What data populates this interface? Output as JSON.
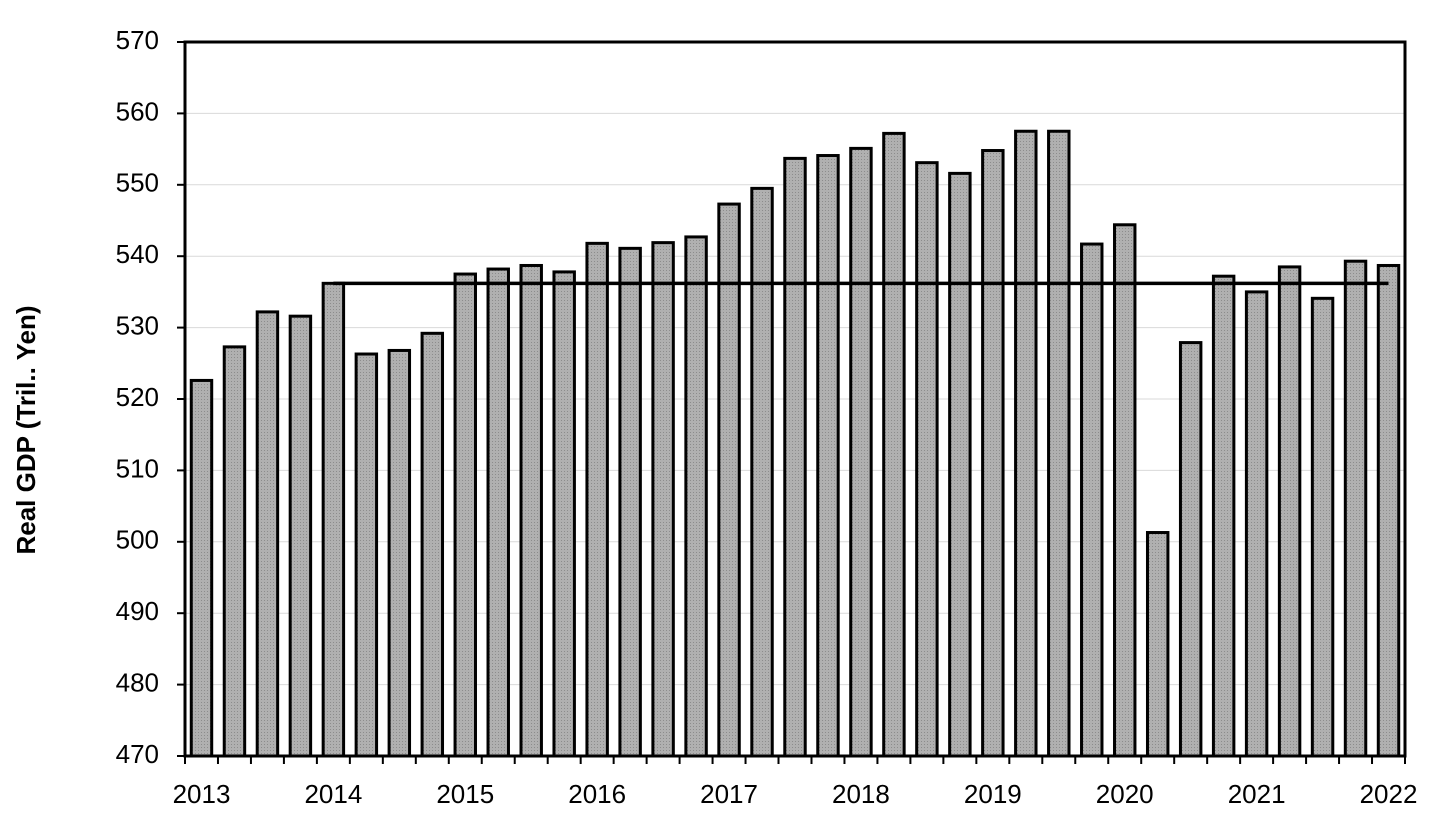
{
  "chart_data": {
    "type": "bar",
    "y_label": "Real GDP (Tril.. Yen)",
    "categories": [
      "2013",
      null,
      null,
      null,
      "2014",
      null,
      null,
      null,
      "2015",
      null,
      null,
      null,
      "2016",
      null,
      null,
      null,
      "2017",
      null,
      null,
      null,
      "2018",
      null,
      null,
      null,
      "2019",
      null,
      null,
      null,
      "2020",
      null,
      null,
      null,
      "2021",
      null,
      null,
      null,
      "2022"
    ],
    "values": [
      522.6,
      527.3,
      532.2,
      531.6,
      536.2,
      526.3,
      526.8,
      529.2,
      537.5,
      538.2,
      538.7,
      537.8,
      541.8,
      541.1,
      541.9,
      542.7,
      547.3,
      549.5,
      553.7,
      554.1,
      555.1,
      557.2,
      553.1,
      551.6,
      554.8,
      557.5,
      557.5,
      541.7,
      544.4,
      501.3,
      527.9,
      537.2,
      535.0,
      538.5,
      534.1,
      539.3,
      538.7
    ],
    "color": "#ababab",
    "line_series": {
      "color": "#000000",
      "values": [
        null,
        null,
        null,
        null,
        536.2,
        536.2,
        536.2,
        536.2,
        536.2,
        536.2,
        536.2,
        536.2,
        536.2,
        536.2,
        536.2,
        536.2,
        536.2,
        536.2,
        536.2,
        536.2,
        536.2,
        536.2,
        536.2,
        536.2,
        536.2,
        536.2,
        536.2,
        536.2,
        536.2,
        536.2,
        536.2,
        536.2,
        536.2,
        536.2,
        536.2,
        536.2,
        536.2
      ]
    },
    "ylim": [
      470,
      570
    ],
    "yticks": [
      470,
      480,
      490,
      500,
      510,
      520,
      530,
      540,
      550,
      560,
      570
    ],
    "grid": true
  }
}
